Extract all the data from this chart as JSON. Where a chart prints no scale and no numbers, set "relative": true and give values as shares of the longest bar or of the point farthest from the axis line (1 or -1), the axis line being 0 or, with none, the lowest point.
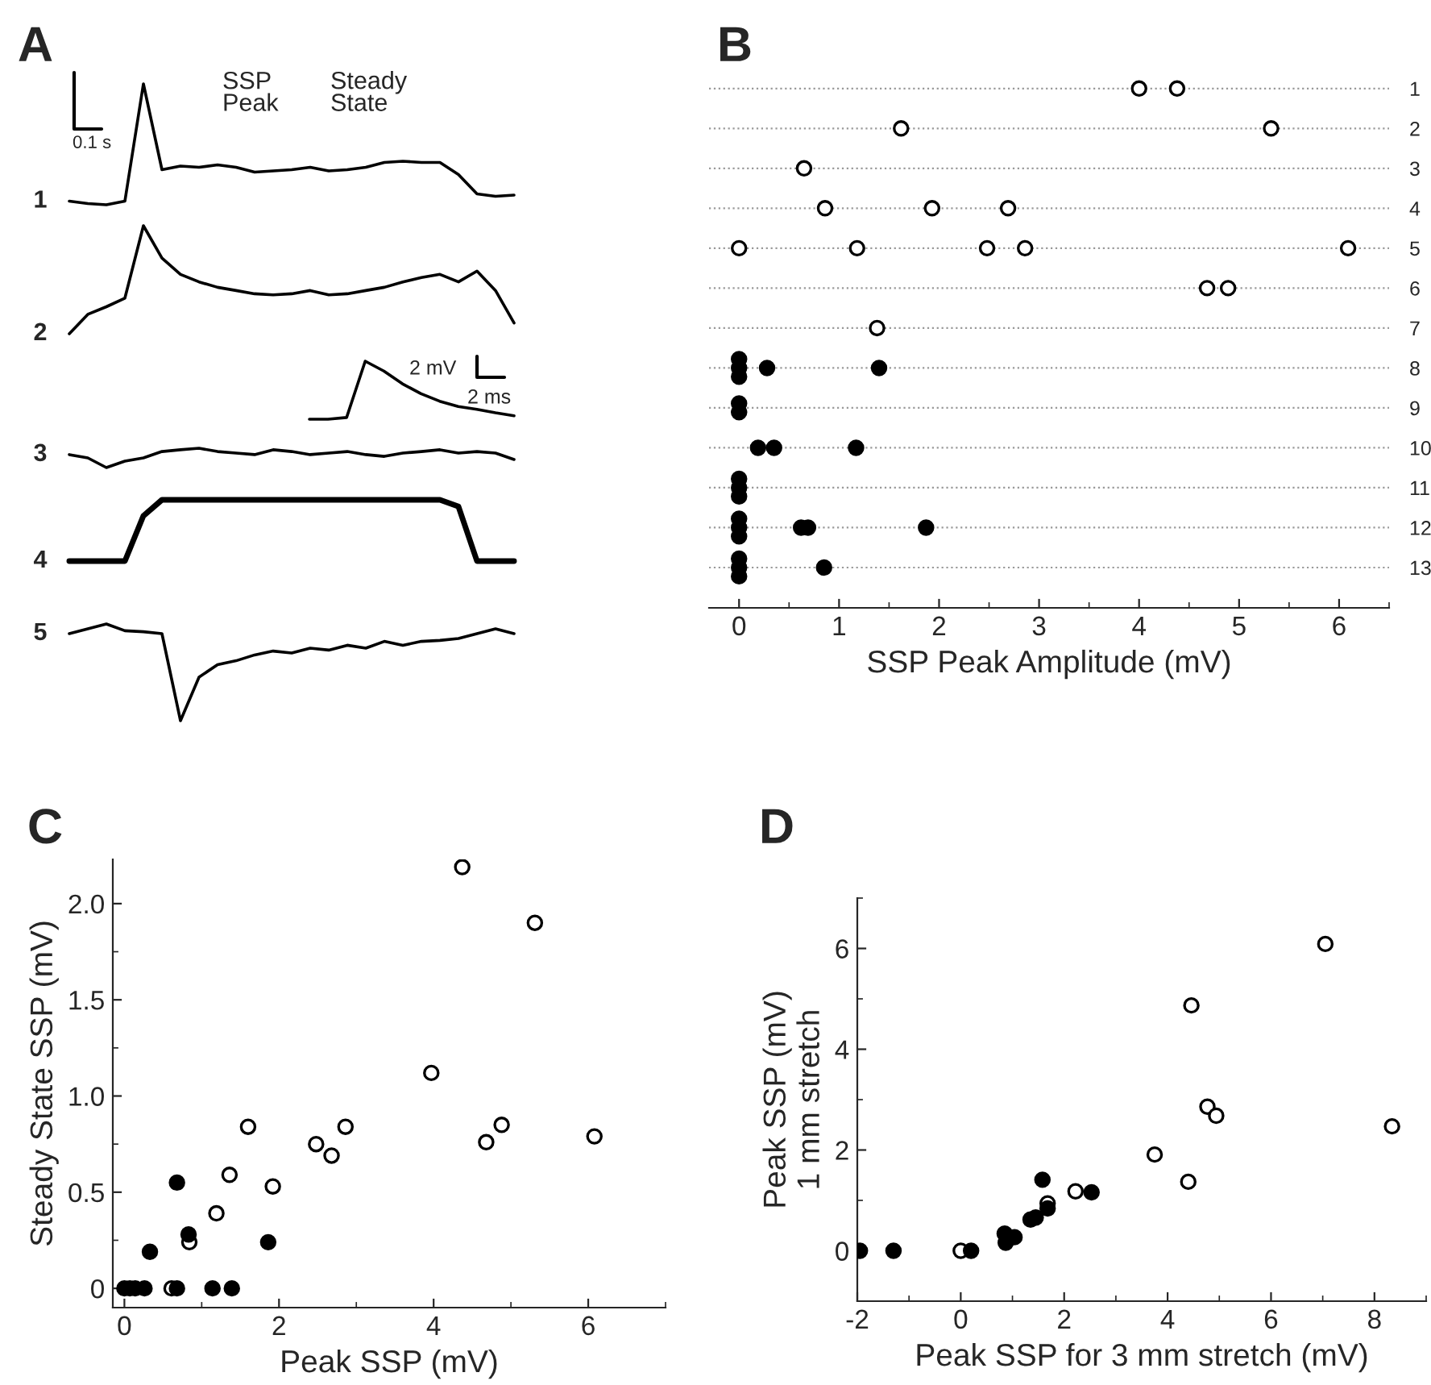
{
  "chart_data": [
    {
      "type": "line",
      "title": "A",
      "relative": true,
      "categories": [
        null,
        null,
        null,
        null,
        null,
        null,
        null,
        null,
        null,
        null,
        null,
        null,
        null,
        null,
        null,
        null,
        null,
        null,
        null,
        null,
        null,
        null,
        null,
        null,
        null
      ],
      "series": [
        {
          "name": "1",
          "color": "#000000",
          "values": [
            0.03,
            0.01,
            0,
            0.03,
            1,
            0.29,
            0.32,
            0.31,
            0.33,
            0.31,
            0.27,
            0.28,
            0.29,
            0.31,
            0.28,
            0.29,
            0.31,
            0.35,
            0.36,
            0.35,
            0.35,
            0.25,
            0.09,
            0.07,
            0.08
          ]
        }
      ],
      "annotations": [
        "SSP\nPeak",
        "Steady\nState",
        "0.1 s"
      ]
    },
    {
      "type": "line",
      "relative": true,
      "categories": [
        null,
        null,
        null,
        null,
        null,
        null,
        null,
        null,
        null,
        null,
        null,
        null,
        null,
        null,
        null,
        null,
        null,
        null,
        null,
        null,
        null,
        null,
        null,
        null,
        null
      ],
      "series": [
        {
          "name": "2",
          "color": "#000000",
          "values": [
            0,
            0.18,
            0.25,
            0.33,
            1,
            0.7,
            0.55,
            0.48,
            0.43,
            0.4,
            0.37,
            0.36,
            0.37,
            0.4,
            0.36,
            0.37,
            0.4,
            0.43,
            0.48,
            0.52,
            0.55,
            0.48,
            0.58,
            0.4,
            0.1
          ]
        }
      ]
    },
    {
      "type": "line",
      "relative": true,
      "categories": [
        null,
        null,
        null,
        null,
        null,
        null,
        null,
        null,
        null,
        null,
        null,
        null
      ],
      "series": [
        {
          "color": "#000000",
          "values": [
            0,
            0,
            0.03,
            1,
            0.83,
            0.61,
            0.44,
            0.31,
            0.22,
            0.17,
            0.11,
            0.06
          ]
        }
      ],
      "annotations": [
        "2 mV",
        "2 ms"
      ]
    },
    {
      "type": "line",
      "relative": true,
      "categories": [
        null,
        null,
        null,
        null,
        null,
        null,
        null,
        null,
        null,
        null,
        null,
        null,
        null,
        null,
        null,
        null,
        null,
        null,
        null,
        null,
        null,
        null,
        null,
        null,
        null
      ],
      "series": [
        {
          "name": "3",
          "color": "#000000",
          "values": [
            0.67,
            0.5,
            0,
            0.33,
            0.5,
            0.83,
            0.92,
            1,
            0.83,
            0.75,
            0.67,
            0.92,
            0.83,
            0.67,
            0.75,
            0.83,
            0.67,
            0.58,
            0.75,
            0.83,
            0.92,
            0.75,
            0.83,
            0.75,
            0.42
          ]
        }
      ]
    },
    {
      "type": "line",
      "relative": true,
      "categories": [
        null,
        null,
        null,
        null,
        null,
        null,
        null,
        null,
        null,
        null,
        null,
        null,
        null,
        null,
        null,
        null,
        null,
        null,
        null,
        null,
        null,
        null,
        null,
        null,
        null
      ],
      "series": [
        {
          "name": "4",
          "color": "#000000",
          "values": [
            0,
            0,
            0,
            0,
            0.74,
            1,
            1,
            1,
            1,
            1,
            1,
            1,
            1,
            1,
            1,
            1,
            1,
            1,
            1,
            1,
            1,
            0.89,
            0,
            0,
            0
          ]
        }
      ]
    },
    {
      "type": "line",
      "relative": true,
      "categories": [
        null,
        null,
        null,
        null,
        null,
        null,
        null,
        null,
        null,
        null,
        null,
        null,
        null,
        null,
        null,
        null,
        null,
        null,
        null,
        null,
        null,
        null,
        null,
        null,
        null
      ],
      "series": [
        {
          "name": "5",
          "color": "#000000",
          "values": [
            0.9,
            0.95,
            1,
            0.93,
            0.92,
            0.9,
            0,
            0.45,
            0.58,
            0.62,
            0.68,
            0.72,
            0.7,
            0.75,
            0.73,
            0.78,
            0.75,
            0.82,
            0.78,
            0.82,
            0.83,
            0.85,
            0.9,
            0.95,
            0.9
          ]
        }
      ]
    },
    {
      "type": "scatter",
      "title": "B",
      "xlabel": "SSP Peak Amplitude (mV)",
      "orientation": "horizontal",
      "grid": "y",
      "marker": "circle",
      "categories": [
        "1",
        "2",
        "3",
        "4",
        "5",
        "6",
        "7",
        "8",
        "9",
        "10",
        "11",
        "12",
        "13"
      ],
      "series": [
        {
          "color": "#ffffff",
          "x": [
            "1",
            "1",
            "2",
            "2",
            "3",
            "4",
            "4",
            "4",
            "5",
            "5",
            "5",
            "5",
            "5",
            "6",
            "6",
            "7"
          ],
          "values": [
            4.0,
            4.38,
            1.62,
            5.32,
            0.65,
            0.86,
            1.93,
            2.69,
            0,
            1.18,
            2.48,
            2.86,
            6.09,
            4.68,
            4.89,
            1.38
          ]
        },
        {
          "color": "#000000",
          "x": [
            "8",
            "8",
            "8",
            "8",
            "8",
            "9",
            "9",
            "10",
            "10",
            "10",
            "11",
            "11",
            "11",
            "12",
            "12",
            "12",
            "12",
            "12",
            "12",
            "13",
            "13",
            "13",
            "13"
          ],
          "values": [
            0,
            0,
            0,
            0.28,
            1.4,
            0,
            0,
            0.19,
            0.35,
            1.17,
            0,
            0,
            0,
            0,
            0,
            0,
            0.62,
            0.69,
            1.87,
            0,
            0,
            0,
            0.85
          ]
        }
      ],
      "xlim": [
        -0.3,
        6.5
      ],
      "xticks": [
        0,
        1,
        2,
        3,
        4,
        5,
        6
      ]
    },
    {
      "type": "scatter",
      "title": "C",
      "xlabel": "Peak SSP (mV)",
      "ylabel": "Steady State SSP (mV)",
      "marker": "circle",
      "series": [
        {
          "color": "#ffffff",
          "x": [
            4.37,
            5.31,
            3.97,
            1.6,
            2.86,
            2.48,
            2.68,
            4.68,
            4.88,
            6.08,
            1.36,
            1.92,
            1.19,
            0.84,
            0.61
          ],
          "values": [
            2.19,
            1.9,
            1.12,
            0.84,
            0.84,
            0.75,
            0.69,
            0.76,
            0.85,
            0.79,
            0.59,
            0.53,
            0.39,
            0.24,
            0
          ]
        },
        {
          "color": "#000000",
          "x": [
            0.68,
            0.68,
            0.83,
            0.33,
            1.86,
            1.14,
            1.39,
            0.0,
            0.07,
            0.14,
            0.26
          ],
          "values": [
            0,
            0.55,
            0.28,
            0.19,
            0.24,
            0,
            0,
            0,
            0,
            0,
            0
          ]
        }
      ],
      "xlim": [
        -0.15,
        7
      ],
      "ylim": [
        -0.1,
        2.23
      ],
      "xticks": [
        0,
        2,
        4,
        6
      ],
      "yticks": [
        0,
        0.5,
        {
          "value": 1,
          "label": "1.0"
        },
        1.5,
        {
          "value": 2,
          "label": "2.0"
        }
      ]
    },
    {
      "type": "scatter",
      "title": "D",
      "xlabel": "Peak SSP for 3 mm stretch (mV)",
      "ylabel": "Peak SSP (mV)\n1 mm stretch",
      "marker": "circle",
      "series": [
        {
          "color": "#ffffff",
          "x": [
            7.05,
            4.46,
            4.77,
            4.94,
            8.34,
            3.75,
            4.4,
            2.22,
            1.68,
            0
          ],
          "values": [
            6.09,
            4.87,
            2.86,
            2.68,
            2.47,
            1.91,
            1.37,
            1.18,
            0.94,
            0
          ]
        },
        {
          "color": "#000000",
          "x": [
            -1.95,
            -1.3,
            0.2,
            0.85,
            0.87,
            1.04,
            1.58,
            2.53,
            1.35,
            1.45,
            1.68
          ],
          "values": [
            0,
            0,
            0,
            0.34,
            0.16,
            0.27,
            1.41,
            1.16,
            0.62,
            0.66,
            0.84
          ]
        }
      ],
      "xlim": [
        -2,
        9
      ],
      "ylim": [
        -1,
        7
      ],
      "xticks": [
        {
          "value": -2,
          "label": "-2"
        },
        0,
        2,
        4,
        6,
        8
      ],
      "yticks": [
        0,
        2,
        4,
        6
      ]
    }
  ]
}
